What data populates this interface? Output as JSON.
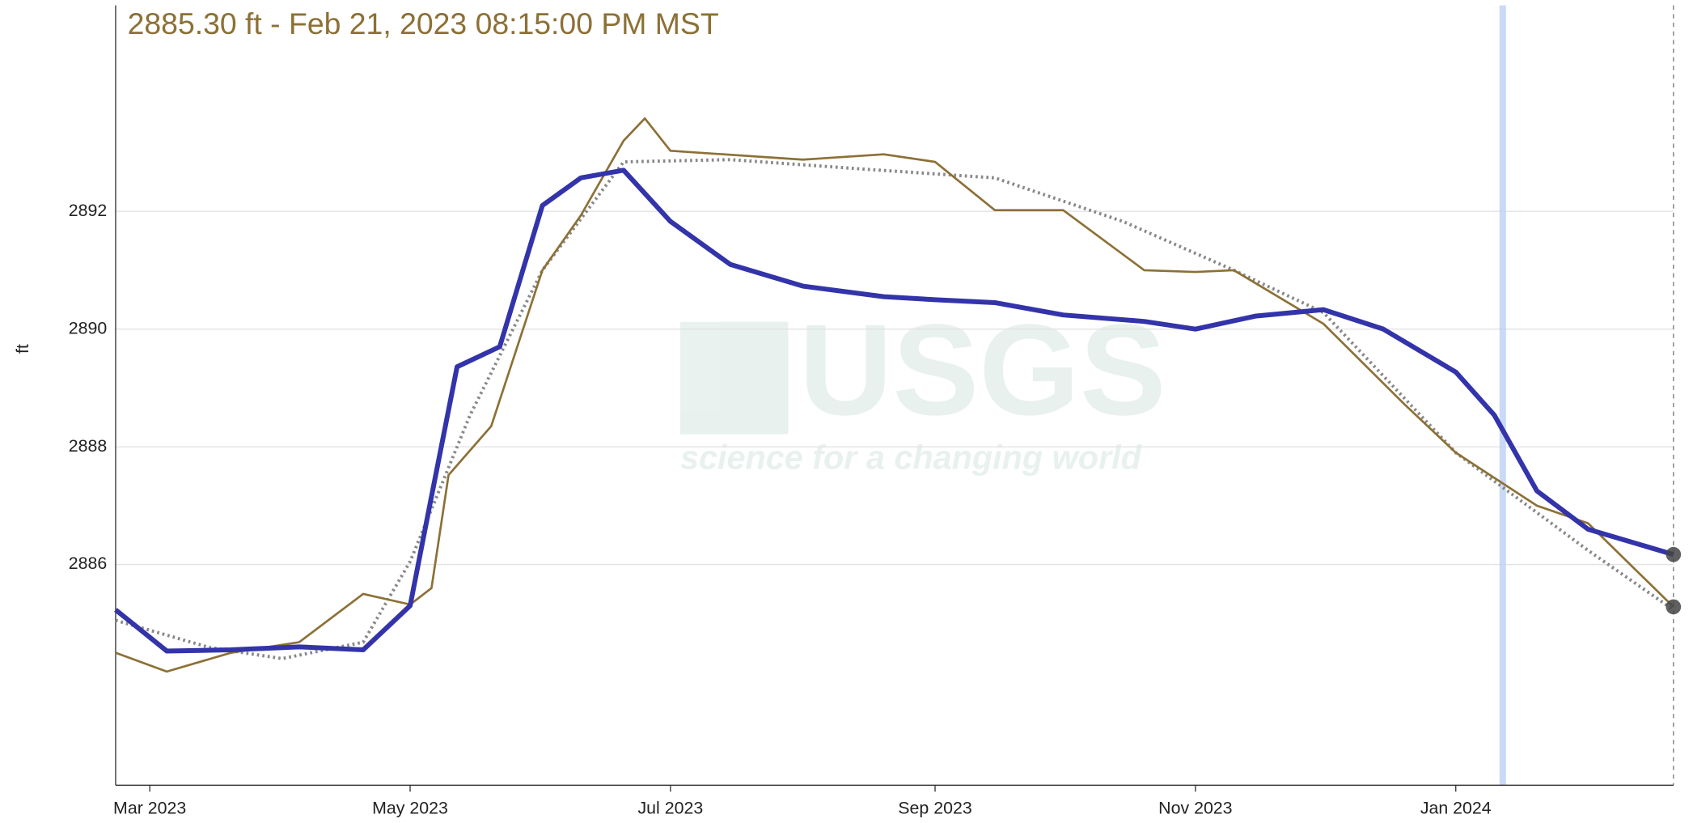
{
  "chart_data": {
    "type": "line",
    "subtitle": "2885.30 ft - Feb 21, 2023 08:15:00 PM MST",
    "y_label": "ft",
    "watermark": {
      "logo": "USGS",
      "tagline": "science for a changing world"
    },
    "xlim": [
      "2023-02-21",
      "2024-02-21"
    ],
    "xticks": [
      {
        "value": "2023-03-01",
        "label": "Mar 2023"
      },
      {
        "value": "2023-05-01",
        "label": "May 2023"
      },
      {
        "value": "2023-07-01",
        "label": "Jul 2023"
      },
      {
        "value": "2023-09-01",
        "label": "Sep 2023"
      },
      {
        "value": "2023-11-01",
        "label": "Nov 2023"
      },
      {
        "value": "2024-01-01",
        "label": "Jan 2024"
      }
    ],
    "ylim": [
      2882.25,
      2895.5
    ],
    "yticks": [
      2886,
      2888,
      2890,
      2892
    ],
    "grid": true,
    "highlight_x": "2024-01-12",
    "series": [
      {
        "color": "#3333aa",
        "style": "solid",
        "width": 4.5,
        "x": [
          "2023-02-21",
          "2023-03-05",
          "2023-03-20",
          "2023-04-05",
          "2023-04-20",
          "2023-05-01",
          "2023-05-06",
          "2023-05-12",
          "2023-05-22",
          "2023-06-01",
          "2023-06-10",
          "2023-06-20",
          "2023-07-01",
          "2023-07-15",
          "2023-08-01",
          "2023-08-20",
          "2023-09-01",
          "2023-09-15",
          "2023-10-01",
          "2023-10-20",
          "2023-11-01",
          "2023-11-15",
          "2023-12-01",
          "2023-12-15",
          "2024-01-01",
          "2024-01-10",
          "2024-01-20",
          "2024-02-01",
          "2024-02-21"
        ],
        "values": [
          2885.23,
          2884.53,
          2884.55,
          2884.6,
          2884.55,
          2885.3,
          2887.16,
          2889.36,
          2889.7,
          2892.1,
          2892.57,
          2892.7,
          2891.83,
          2891.1,
          2890.73,
          2890.55,
          2890.5,
          2890.45,
          2890.24,
          2890.13,
          2890.0,
          2890.22,
          2890.33,
          2890.0,
          2889.27,
          2888.54,
          2887.25,
          2886.6,
          2886.17
        ]
      },
      {
        "color": "#8c7035",
        "style": "solid",
        "width": 2,
        "x": [
          "2023-02-21",
          "2023-03-05",
          "2023-03-20",
          "2023-04-05",
          "2023-04-20",
          "2023-05-01",
          "2023-05-06",
          "2023-05-10",
          "2023-05-20",
          "2023-06-01",
          "2023-06-10",
          "2023-06-20",
          "2023-06-25",
          "2023-07-01",
          "2023-08-01",
          "2023-08-20",
          "2023-09-01",
          "2023-09-15",
          "2023-10-01",
          "2023-10-20",
          "2023-11-01",
          "2023-11-10",
          "2023-12-01",
          "2023-12-20",
          "2024-01-01",
          "2024-01-20",
          "2024-02-01",
          "2024-02-21"
        ],
        "values": [
          2884.5,
          2884.18,
          2884.5,
          2884.68,
          2885.5,
          2885.32,
          2885.6,
          2887.52,
          2888.35,
          2891.0,
          2891.93,
          2893.2,
          2893.58,
          2893.03,
          2892.88,
          2892.97,
          2892.84,
          2892.02,
          2892.02,
          2891.0,
          2890.97,
          2891.0,
          2890.09,
          2888.72,
          2887.9,
          2887.0,
          2886.7,
          2885.28
        ]
      },
      {
        "color": "#888888",
        "style": "dotted",
        "width": 3,
        "x": [
          "2023-02-21",
          "2023-03-15",
          "2023-04-01",
          "2023-04-20",
          "2023-05-01",
          "2023-05-15",
          "2023-06-01",
          "2023-06-20",
          "2023-07-15",
          "2023-08-15",
          "2023-09-15",
          "2023-10-15",
          "2023-11-10",
          "2023-12-01",
          "2024-01-01",
          "2024-02-01",
          "2024-02-21"
        ],
        "values": [
          2885.05,
          2884.59,
          2884.4,
          2884.68,
          2886.05,
          2888.53,
          2891.0,
          2892.84,
          2892.88,
          2892.72,
          2892.57,
          2891.83,
          2891.0,
          2890.28,
          2887.9,
          2886.24,
          2885.23
        ]
      }
    ]
  }
}
